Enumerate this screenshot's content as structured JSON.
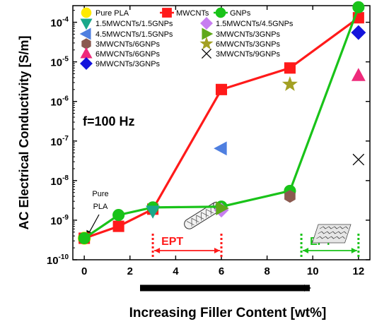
{
  "chart_data": {
    "type": "scatter",
    "xlabel": "Increasing Filler Content [wt%]",
    "ylabel": "AC Electrical Conductivity [S/m]",
    "xlim": [
      -0.5,
      12.5
    ],
    "ylim_log10": [
      -10,
      -3.58
    ],
    "y_scale": "log",
    "grid": false,
    "legend_position": "top-left",
    "x_ticks": [
      0,
      2,
      4,
      6,
      8,
      10,
      12
    ],
    "y_ticks": [
      {
        "base": "10",
        "exp": "-10",
        "value": -10
      },
      {
        "base": "10",
        "exp": "-9",
        "value": -9
      },
      {
        "base": "10",
        "exp": "-8",
        "value": -8
      },
      {
        "base": "10",
        "exp": "-7",
        "value": -7
      },
      {
        "base": "10",
        "exp": "-6",
        "value": -6
      },
      {
        "base": "10",
        "exp": "-5",
        "value": -5
      },
      {
        "base": "10",
        "exp": "-4",
        "value": -4
      }
    ],
    "series": [
      {
        "name": "Pure PLA",
        "marker": "circle",
        "color": "#ffea00",
        "line": false,
        "points": [
          [
            0,
            3.5e-10
          ]
        ]
      },
      {
        "name": "MWCNTs",
        "marker": "square",
        "color": "#ff1a1a",
        "line": true,
        "points": [
          [
            0,
            3.5e-10
          ],
          [
            1.5,
            7e-10
          ],
          [
            3,
            1.9e-09
          ],
          [
            6,
            2e-06
          ],
          [
            9,
            7e-06
          ],
          [
            12,
            0.00013
          ]
        ]
      },
      {
        "name": "GNPs",
        "marker": "circle",
        "color": "#19c319",
        "line": true,
        "points": [
          [
            0,
            3.5e-10
          ],
          [
            1.5,
            1.35e-09
          ],
          [
            3,
            2.1e-09
          ],
          [
            6,
            2.2e-09
          ],
          [
            9,
            5.5e-09
          ],
          [
            12,
            0.00024
          ]
        ]
      },
      {
        "name": "1.5MWCNTs/1.5GNPs",
        "marker": "triangle-down",
        "color": "#1aa88a",
        "line": false,
        "points": [
          [
            3,
            1.7e-09
          ]
        ]
      },
      {
        "name": "1.5MWCNTs/4.5GNPs",
        "marker": "diamond",
        "color": "#c77ef0",
        "line": false,
        "points": [
          [
            6,
            1.8e-09
          ]
        ]
      },
      {
        "name": "4.5MWCNTs/1.5GNPs",
        "marker": "triangle-left",
        "color": "#4f7fe0",
        "line": false,
        "points": [
          [
            6,
            6.5e-08
          ]
        ]
      },
      {
        "name": "3MWCNTs/3GNPs",
        "marker": "triangle-right",
        "color": "#5fa81a",
        "line": false,
        "points": [
          [
            6,
            2e-09
          ]
        ]
      },
      {
        "name": "3MWCNTs/6GNPs",
        "marker": "hexagon",
        "color": "#8b5a50",
        "line": false,
        "points": [
          [
            9,
            4e-09
          ]
        ]
      },
      {
        "name": "6MWCNTs/3GNPs",
        "marker": "star",
        "color": "#a3a023",
        "line": false,
        "points": [
          [
            9,
            2.7e-06
          ]
        ]
      },
      {
        "name": "6MWCNTs/6GNPs",
        "marker": "triangle-up",
        "color": "#ee2a7b",
        "line": false,
        "points": [
          [
            12,
            4.5e-06
          ]
        ]
      },
      {
        "name": "3MWCNTs/9GNPs",
        "marker": "x",
        "color": "#000000",
        "line": false,
        "points": [
          [
            12,
            3.4e-08
          ]
        ]
      },
      {
        "name": "9MWCNTs/3GNPs",
        "marker": "diamond",
        "color": "#1414dc",
        "line": false,
        "points": [
          [
            12,
            5.5e-05
          ]
        ]
      }
    ],
    "annotations": {
      "frequency": "f=100 Hz",
      "pure_pla_label_line1": "Pure",
      "pure_pla_label_line2": "PLA",
      "ept_mwcnt": {
        "text": "EPT",
        "x_from": 3,
        "x_to": 6,
        "color": "#ff1a1a"
      },
      "ept_gnp": {
        "text": "EPT",
        "x_from": 9.5,
        "x_to": 12,
        "color": "#19c319"
      },
      "icon_mwcnt": "carbon-nanotube-icon",
      "icon_gnp": "graphene-sheet-icon"
    }
  }
}
